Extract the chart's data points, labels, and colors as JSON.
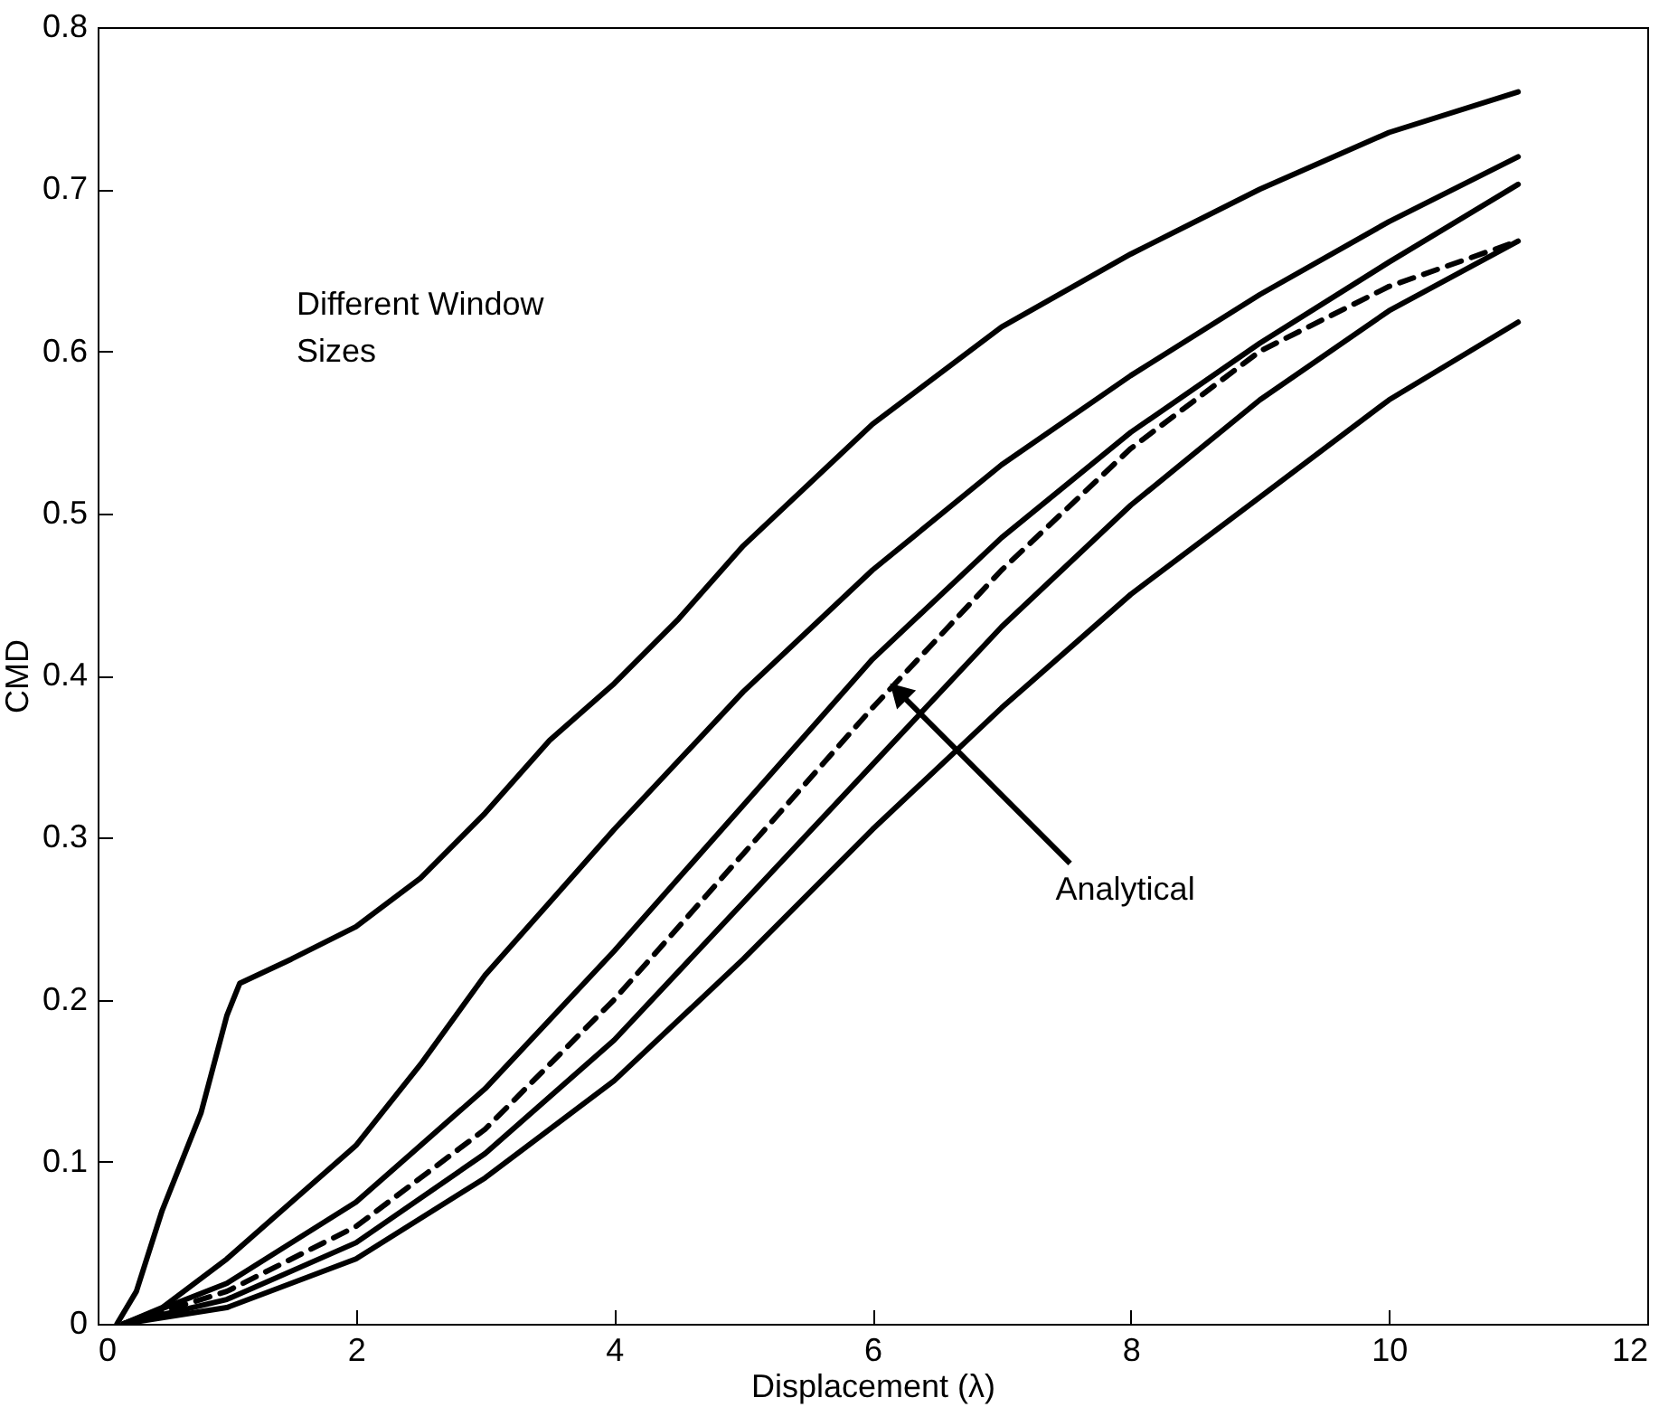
{
  "chart_data": {
    "type": "line",
    "xlabel": "Displacement (λ)",
    "ylabel": "CMD",
    "xlim": [
      0,
      12
    ],
    "ylim": [
      0,
      0.8
    ],
    "xticks": [
      0,
      2,
      4,
      6,
      8,
      10,
      12
    ],
    "yticks": [
      0,
      0.1,
      0.2,
      0.3,
      0.4,
      0.5,
      0.6,
      0.7,
      0.8
    ],
    "grid": false,
    "marker": "none",
    "line_style": "solid",
    "annotations": [
      "Different Window Sizes",
      {
        "text": "Analytical",
        "x": 6.2,
        "y": 0.39
      }
    ],
    "series": [
      {
        "color": "#000000",
        "x": [
          0.15,
          0.3,
          0.5,
          0.8,
          1.0,
          1.1,
          1.5,
          2,
          2.5,
          3,
          3.5,
          4,
          4.5,
          5,
          6,
          7,
          8,
          9,
          10,
          11
        ],
        "values": [
          0,
          0.02,
          0.07,
          0.13,
          0.19,
          0.21,
          0.225,
          0.245,
          0.275,
          0.315,
          0.36,
          0.395,
          0.435,
          0.48,
          0.555,
          0.615,
          0.66,
          0.7,
          0.735,
          0.76
        ]
      },
      {
        "color": "#000000",
        "x": [
          0.2,
          0.5,
          1,
          1.5,
          2,
          2.5,
          3,
          3.5,
          4,
          5,
          6,
          7,
          8,
          9,
          10,
          11
        ],
        "values": [
          0,
          0.01,
          0.04,
          0.075,
          0.11,
          0.16,
          0.215,
          0.26,
          0.305,
          0.39,
          0.465,
          0.53,
          0.585,
          0.635,
          0.68,
          0.72
        ]
      },
      {
        "color": "#000000",
        "x": [
          0.2,
          1,
          2,
          3,
          4,
          5,
          6,
          7,
          8,
          9,
          10,
          11
        ],
        "values": [
          0,
          0.025,
          0.075,
          0.145,
          0.23,
          0.32,
          0.41,
          0.485,
          0.55,
          0.605,
          0.655,
          0.703
        ]
      },
      {
        "color": "#000000",
        "line_style": "dashed",
        "x": [
          0.2,
          1,
          2,
          3,
          4,
          5,
          6,
          7,
          8,
          9,
          10,
          11
        ],
        "values": [
          0,
          0.02,
          0.06,
          0.12,
          0.2,
          0.29,
          0.38,
          0.465,
          0.54,
          0.6,
          0.64,
          0.668
        ]
      },
      {
        "color": "#000000",
        "x": [
          0.2,
          1,
          2,
          3,
          4,
          5,
          6,
          7,
          8,
          9,
          10,
          11
        ],
        "values": [
          0,
          0.015,
          0.05,
          0.105,
          0.175,
          0.26,
          0.345,
          0.43,
          0.505,
          0.57,
          0.625,
          0.668
        ]
      },
      {
        "color": "#000000",
        "x": [
          0.2,
          1,
          2,
          3,
          4,
          5,
          6,
          7,
          8,
          9,
          10,
          11
        ],
        "values": [
          0,
          0.01,
          0.04,
          0.09,
          0.15,
          0.225,
          0.305,
          0.38,
          0.45,
          0.51,
          0.57,
          0.618
        ]
      }
    ]
  }
}
